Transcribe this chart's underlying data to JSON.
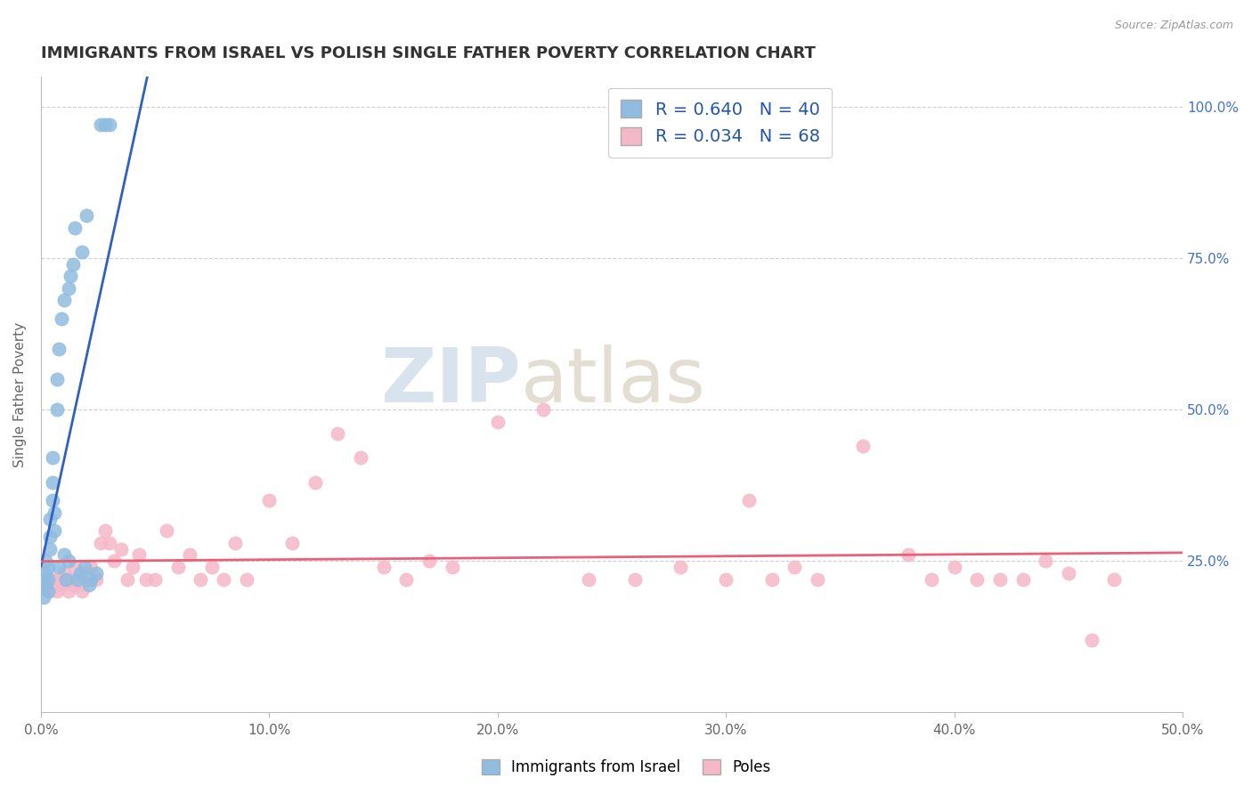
{
  "title": "IMMIGRANTS FROM ISRAEL VS POLISH SINGLE FATHER POVERTY CORRELATION CHART",
  "source": "Source: ZipAtlas.com",
  "ylabel": "Single Father Poverty",
  "xlim": [
    0.0,
    0.5
  ],
  "ylim": [
    0.0,
    1.05
  ],
  "xtick_labels": [
    "0.0%",
    "10.0%",
    "20.0%",
    "30.0%",
    "40.0%",
    "50.0%"
  ],
  "xtick_values": [
    0.0,
    0.1,
    0.2,
    0.3,
    0.4,
    0.5
  ],
  "ytick_values": [
    0.25,
    0.5,
    0.75,
    1.0
  ],
  "right_ytick_labels": [
    "25.0%",
    "50.0%",
    "75.0%",
    "100.0%"
  ],
  "israel_color": "#90bce0",
  "poles_color": "#f5b8c8",
  "israel_line_color": "#3060c0",
  "poles_line_color": "#e8607a",
  "legend_israel_label": "R = 0.640   N = 40",
  "legend_poles_label": "R = 0.034   N = 68",
  "legend_title_israel": "Immigrants from Israel",
  "legend_title_poles": "Poles",
  "watermark_zip": "ZIP",
  "watermark_atlas": "atlas",
  "israel_scatter_x": [
    0.001,
    0.001,
    0.002,
    0.002,
    0.002,
    0.003,
    0.003,
    0.003,
    0.004,
    0.004,
    0.004,
    0.005,
    0.005,
    0.005,
    0.006,
    0.006,
    0.007,
    0.007,
    0.008,
    0.008,
    0.009,
    0.01,
    0.01,
    0.011,
    0.012,
    0.012,
    0.013,
    0.014,
    0.015,
    0.016,
    0.017,
    0.018,
    0.019,
    0.02,
    0.021,
    0.022,
    0.024,
    0.026,
    0.028,
    0.03
  ],
  "israel_scatter_y": [
    0.22,
    0.19,
    0.23,
    0.21,
    0.25,
    0.22,
    0.2,
    0.24,
    0.27,
    0.29,
    0.32,
    0.35,
    0.38,
    0.42,
    0.3,
    0.33,
    0.5,
    0.55,
    0.6,
    0.24,
    0.65,
    0.26,
    0.68,
    0.22,
    0.7,
    0.25,
    0.72,
    0.74,
    0.8,
    0.22,
    0.23,
    0.76,
    0.24,
    0.82,
    0.21,
    0.22,
    0.23,
    0.97,
    0.97,
    0.97
  ],
  "poles_scatter_x": [
    0.002,
    0.003,
    0.004,
    0.005,
    0.006,
    0.007,
    0.008,
    0.009,
    0.01,
    0.011,
    0.012,
    0.013,
    0.014,
    0.015,
    0.016,
    0.017,
    0.018,
    0.02,
    0.022,
    0.024,
    0.026,
    0.028,
    0.03,
    0.032,
    0.035,
    0.038,
    0.04,
    0.043,
    0.046,
    0.05,
    0.055,
    0.06,
    0.065,
    0.07,
    0.075,
    0.08,
    0.085,
    0.09,
    0.1,
    0.11,
    0.12,
    0.13,
    0.14,
    0.15,
    0.16,
    0.17,
    0.18,
    0.2,
    0.22,
    0.24,
    0.26,
    0.28,
    0.3,
    0.31,
    0.32,
    0.33,
    0.34,
    0.36,
    0.38,
    0.39,
    0.4,
    0.41,
    0.42,
    0.43,
    0.44,
    0.45,
    0.46,
    0.47
  ],
  "poles_scatter_y": [
    0.22,
    0.21,
    0.2,
    0.22,
    0.21,
    0.2,
    0.22,
    0.21,
    0.23,
    0.22,
    0.2,
    0.22,
    0.21,
    0.24,
    0.22,
    0.21,
    0.2,
    0.23,
    0.24,
    0.22,
    0.28,
    0.3,
    0.28,
    0.25,
    0.27,
    0.22,
    0.24,
    0.26,
    0.22,
    0.22,
    0.3,
    0.24,
    0.26,
    0.22,
    0.24,
    0.22,
    0.28,
    0.22,
    0.35,
    0.28,
    0.38,
    0.46,
    0.42,
    0.24,
    0.22,
    0.25,
    0.24,
    0.48,
    0.5,
    0.22,
    0.22,
    0.24,
    0.22,
    0.35,
    0.22,
    0.24,
    0.22,
    0.44,
    0.26,
    0.22,
    0.24,
    0.22,
    0.22,
    0.22,
    0.25,
    0.23,
    0.12,
    0.22
  ]
}
